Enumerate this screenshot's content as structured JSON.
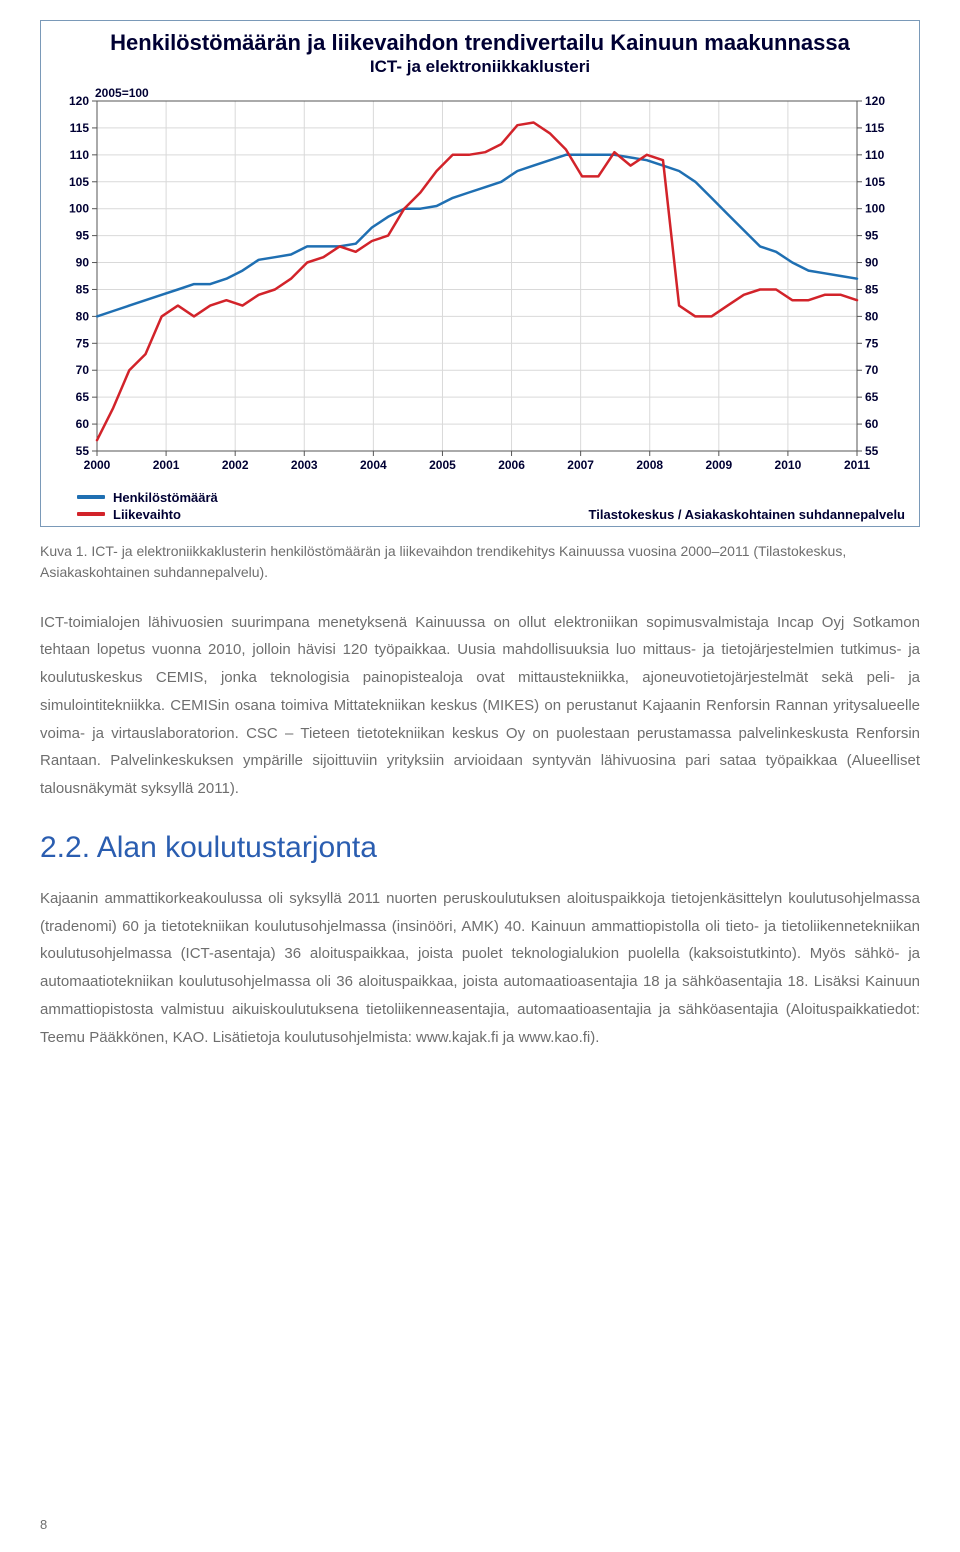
{
  "chart": {
    "type": "line",
    "title": "Henkilöstömäärän ja liikevaihdon trendivertailu Kainuun maakunnassa",
    "subtitle": "ICT- ja elektroniikkaklusteri",
    "index_label": "2005=100",
    "source_label": "Tilastokeskus / Asiakaskohtainen suhdannepalvelu",
    "x_labels": [
      "2000",
      "2001",
      "2002",
      "2003",
      "2004",
      "2005",
      "2006",
      "2007",
      "2008",
      "2009",
      "2010",
      "2011"
    ],
    "y_ticks": [
      55,
      60,
      65,
      70,
      75,
      80,
      85,
      90,
      95,
      100,
      105,
      110,
      115,
      120
    ],
    "ylim": [
      55,
      120
    ],
    "grid_color": "#d9d9d9",
    "axis_color": "#555555",
    "background_color": "#ffffff",
    "series": [
      {
        "name": "Henkilöstömäärä",
        "color": "#1f6fb2",
        "line_width": 2.5,
        "data": [
          80,
          81,
          82,
          83,
          84,
          85,
          86,
          86,
          87,
          88.5,
          90.5,
          91,
          91.5,
          93,
          93,
          93,
          93.5,
          96.5,
          98.5,
          100,
          100,
          100.5,
          102,
          103,
          104,
          105,
          107,
          108,
          109,
          110,
          110,
          110,
          110,
          109.5,
          109,
          108,
          107,
          105,
          102,
          99,
          96,
          93,
          92,
          90,
          88.5,
          88,
          87.5,
          87
        ]
      },
      {
        "name": "Liikevaihto",
        "color": "#d2232a",
        "line_width": 2.5,
        "data": [
          57,
          63,
          70,
          73,
          80,
          82,
          80,
          82,
          83,
          82,
          84,
          85,
          87,
          90,
          91,
          93,
          92,
          94,
          95,
          100,
          103,
          107,
          110,
          110,
          110.5,
          112,
          115.5,
          116,
          114,
          111,
          106,
          106,
          110.5,
          108,
          110,
          109,
          82,
          80,
          80,
          82,
          84,
          85,
          85,
          83,
          83,
          84,
          84,
          83
        ]
      }
    ],
    "legend": {
      "items": [
        {
          "label": "Henkilöstömäärä",
          "color": "#1f6fb2"
        },
        {
          "label": "Liikevaihto",
          "color": "#d2232a"
        }
      ]
    }
  },
  "caption": "Kuva 1. ICT- ja elektroniikkaklusterin henkilöstömäärän ja liikevaihdon trendikehitys Kainuussa vuosina 2000–2011 (Tilastokeskus, Asiakaskohtainen suhdannepalvelu).",
  "paragraph1": "ICT-toimialojen lähivuosien suurimpana menetyksenä Kainuussa on ollut elektroniikan sopimusvalmistaja Incap Oyj Sotkamon tehtaan lopetus vuonna 2010, jolloin hävisi 120 työpaikkaa. Uusia mahdollisuuksia luo mittaus- ja tietojärjestelmien tutkimus- ja koulutuskeskus CEMIS, jonka teknologisia painopistealoja ovat mittaustekniikka, ajoneuvotietojärjestelmät sekä peli- ja simulointitekniikka. CEMISin osana toimiva Mittatekniikan keskus (MIKES) on perustanut Kajaanin Renforsin Rannan yritysalueelle voima- ja virtauslaboratorion. CSC – Tieteen tietotekniikan keskus Oy on puolestaan perustamassa palvelinkeskusta Renforsin Rantaan. Palvelinkeskuksen ympärille sijoittuviin yrityksiin arvioidaan syntyvän lähivuosina pari sataa työpaikkaa (Alueelliset talousnäkymät syksyllä 2011).",
  "section": {
    "number": "2.2.",
    "title": "Alan koulutustarjonta"
  },
  "paragraph2": "Kajaanin ammattikorkeakoulussa oli syksyllä 2011 nuorten peruskoulutuksen aloituspaikkoja tietojenkäsittelyn koulutusohjelmassa (tradenomi) 60 ja tietotekniikan koulutusohjelmassa (insinööri, AMK) 40. Kainuun ammattiopistolla oli tieto- ja tietoliikennetekniikan koulutusohjelmassa (ICT-asentaja) 36 aloituspaikkaa, joista puolet teknologialukion puolella (kaksoistutkinto). Myös sähkö- ja automaatiotekniikan koulutusohjelmassa oli 36 aloituspaikkaa, joista automaatioasentajia 18 ja sähköasentajia 18. Lisäksi Kainuun ammattiopistosta valmistuu aikuiskoulutuksena tietoliikenneasentajia, automaatioasentajia ja sähköasentajia (Aloituspaikkatiedot: Teemu Pääkkönen, KAO. Lisätietoja koulutusohjelmista: www.kajak.fi ja www.kao.fi).",
  "page_number": "8"
}
